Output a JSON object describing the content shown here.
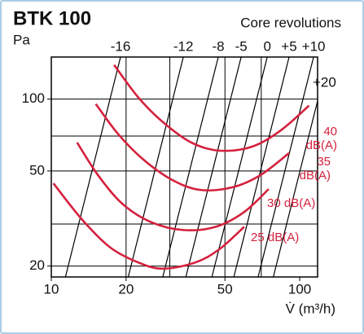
{
  "chart_data": {
    "type": "fan-curve",
    "title": "BTK 100",
    "y_label": "Pa",
    "lines_title": "Core revolutions",
    "x_label": "V̇ (m³/h)",
    "log_x": true,
    "log_y": true,
    "xlim": [
      10,
      118
    ],
    "ylim": [
      18,
      150
    ],
    "xticks": [
      10,
      20,
      50,
      100
    ],
    "yticks": [
      20,
      50,
      100
    ],
    "xgrid": [
      20,
      30,
      50,
      70
    ],
    "ygrid": [
      20,
      30,
      50,
      70,
      100
    ],
    "line_color": "#000000",
    "speed_lines": [
      {
        "name": "-16",
        "x": [
          11.4,
          19.0
        ],
        "y": [
          18,
          150
        ]
      },
      {
        "name": "-12",
        "x": [
          20.4,
          34.0
        ],
        "y": [
          18,
          150
        ]
      },
      {
        "name": "-8",
        "x": [
          28.1,
          47.0
        ],
        "y": [
          18,
          150
        ]
      },
      {
        "name": "-5",
        "x": [
          34.8,
          58.1
        ],
        "y": [
          18,
          150
        ]
      },
      {
        "name": "0",
        "x": [
          44.3,
          74.0
        ],
        "y": [
          18,
          150
        ]
      },
      {
        "name": "+5",
        "x": [
          54.3,
          90.6
        ],
        "y": [
          18,
          150
        ]
      },
      {
        "name": "+10",
        "x": [
          68.0,
          113.7
        ],
        "y": [
          18,
          150
        ]
      },
      {
        "name": "+20",
        "x": [
          78.3,
          130.7
        ],
        "y": [
          18,
          150
        ]
      }
    ],
    "series": [
      {
        "name": "40 dB(A)",
        "color": "#d4213d",
        "x": [
          17.9,
          22.4,
          28.1,
          36.6,
          47.7,
          64.5,
          84.1,
          109
        ],
        "values": [
          139,
          101.6,
          80.2,
          65.8,
          60.8,
          63.3,
          74.1,
          93.9
        ]
      },
      {
        "name": "35 dB(A)",
        "color": "#d4213d",
        "x": [
          15.1,
          18.6,
          23.3,
          30.3,
          39.5,
          53.4,
          69.6,
          90.6
        ],
        "values": [
          95.4,
          71.3,
          56.2,
          46.2,
          41.7,
          42.7,
          48.1,
          59.4
        ]
      },
      {
        "name": "30 dB(A)",
        "color": "#d4213d",
        "x": [
          12.7,
          15.4,
          19.3,
          25.1,
          34.0,
          45.9,
          59.8,
          75.0
        ],
        "values": [
          65.8,
          48.1,
          36.5,
          30.6,
          28.3,
          29.2,
          33.7,
          42.0
        ]
      },
      {
        "name": "25 dB(A)",
        "color": "#d4213d",
        "x": [
          10.2,
          13.2,
          17.2,
          22.4,
          28.1,
          38.0,
          47.7,
          59.8
        ],
        "values": [
          44.4,
          31.6,
          24.0,
          20.7,
          19.5,
          20.7,
          23.6,
          29.2
        ]
      }
    ]
  }
}
